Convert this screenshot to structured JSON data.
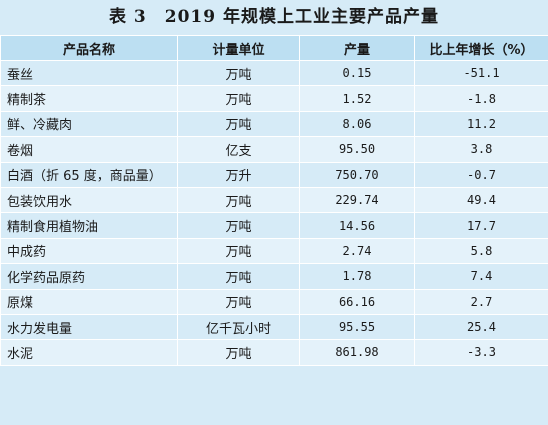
{
  "title": "表 3　2019 年规模上工业主要产品产量",
  "headers": [
    "产品名称",
    "计量单位",
    "产量",
    "比上年增长（%）"
  ],
  "rows": [
    {
      "name": "蚕丝",
      "unit": "万吨",
      "output": "0.15",
      "growth": "-51.1"
    },
    {
      "name": "精制茶",
      "unit": "万吨",
      "output": "1.52",
      "growth": "-1.8"
    },
    {
      "name": "鲜、冷藏肉",
      "unit": "万吨",
      "output": "8.06",
      "growth": "11.2"
    },
    {
      "name": "卷烟",
      "unit": "亿支",
      "output": "95.50",
      "growth": "3.8"
    },
    {
      "name": "白酒（折 65 度，商品量）",
      "unit": "万升",
      "output": "750.70",
      "growth": "-0.7"
    },
    {
      "name": "包装饮用水",
      "unit": "万吨",
      "output": "229.74",
      "growth": "49.4"
    },
    {
      "name": "精制食用植物油",
      "unit": "万吨",
      "output": "14.56",
      "growth": "17.7"
    },
    {
      "name": "中成药",
      "unit": "万吨",
      "output": "2.74",
      "growth": "5.8"
    },
    {
      "name": "化学药品原药",
      "unit": "万吨",
      "output": "1.78",
      "growth": "7.4"
    },
    {
      "name": "原煤",
      "unit": "万吨",
      "output": "66.16",
      "growth": "2.7"
    },
    {
      "name": "水力发电量",
      "unit": "亿千瓦小时",
      "output": "95.55",
      "growth": "25.4"
    },
    {
      "name": "水泥",
      "unit": "万吨",
      "output": "861.98",
      "growth": "-3.3"
    }
  ]
}
